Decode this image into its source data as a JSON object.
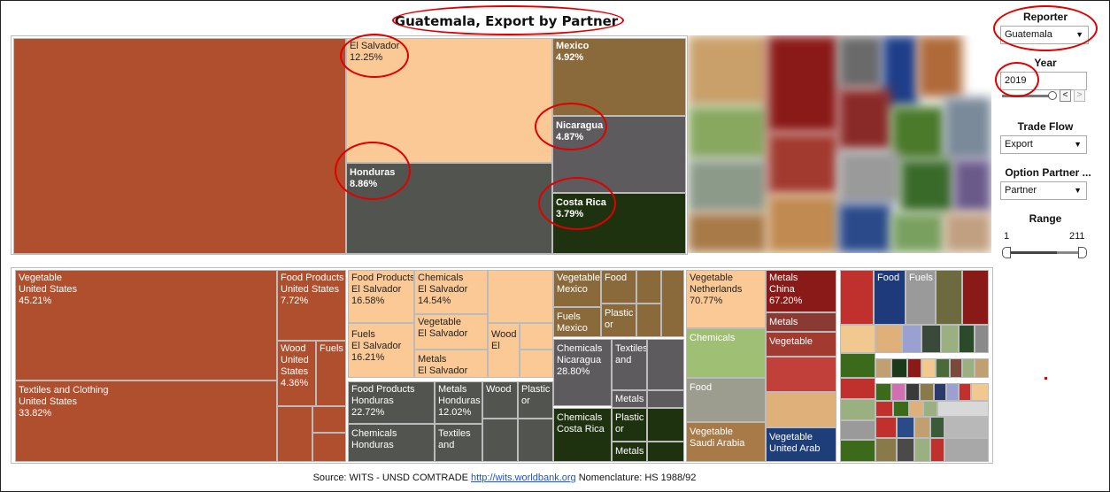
{
  "title": "Guatemala, Export by Partner",
  "top_map": {
    "cells": [
      {
        "label": "El Salvador",
        "value": "12.25%"
      },
      {
        "label": "Mexico",
        "value": "4.92%"
      },
      {
        "label": "Nicaragua",
        "value": "4.87%"
      },
      {
        "label": "Honduras",
        "value": "8.86%"
      },
      {
        "label": "Costa Rica",
        "value": "3.79%"
      }
    ]
  },
  "bottom_map": {
    "us": [
      {
        "l1": "Vegetable",
        "l2": "United States",
        "l3": "45.21%"
      },
      {
        "l1": "Food Products",
        "l2": "United States",
        "l3": "7.72%"
      },
      {
        "l1": "Wood",
        "l2": "United",
        "l3": "States",
        "l4": "4.36%"
      },
      {
        "l1": "Fuels"
      },
      {
        "l1": "Textiles and Clothing",
        "l2": "United States",
        "l3": "33.82%"
      }
    ],
    "sv": [
      {
        "l1": "Food Products",
        "l2": "El Salvador",
        "l3": "16.58%"
      },
      {
        "l1": "Chemicals",
        "l2": "El Salvador",
        "l3": "14.54%"
      },
      {
        "l1": "Vegetable",
        "l2": "El Salvador"
      },
      {
        "l1": "Wood",
        "l2": "El"
      },
      {
        "l1": "Fuels",
        "l2": "El Salvador",
        "l3": "16.21%"
      },
      {
        "l1": "Metals",
        "l2": "El Salvador"
      }
    ],
    "hn": [
      {
        "l1": "Food Products",
        "l2": "Honduras",
        "l3": "22.72%"
      },
      {
        "l1": "Metals",
        "l2": "Honduras",
        "l3": "12.02%"
      },
      {
        "l1": "Wood"
      },
      {
        "l1": "Plastic",
        "l2": "or"
      },
      {
        "l1": "Chemicals",
        "l2": "Honduras"
      },
      {
        "l1": "Textiles",
        "l2": "and"
      }
    ],
    "mx": [
      {
        "l1": "Vegetable",
        "l2": "Mexico"
      },
      {
        "l1": "Food"
      },
      {
        "l1": "Fuels",
        "l2": "Mexico"
      },
      {
        "l1": "Plastic",
        "l2": "or"
      }
    ],
    "ni": [
      {
        "l1": "Chemicals",
        "l2": "Nicaragua",
        "l3": "28.80%"
      },
      {
        "l1": "Textiles",
        "l2": "and"
      },
      {
        "l1": "Metals"
      }
    ],
    "cr": [
      {
        "l1": "Chemicals",
        "l2": "Costa Rica"
      },
      {
        "l1": "Plastic",
        "l2": "or"
      },
      {
        "l1": "Metals"
      }
    ],
    "nl": [
      {
        "l1": "Vegetable",
        "l2": "Netherlands",
        "l3": "70.77%"
      },
      {
        "l1": "Chemicals"
      },
      {
        "l1": "Food"
      },
      {
        "l1": "Vegetable",
        "l2": "Saudi Arabia"
      }
    ],
    "cn": [
      {
        "l1": "Metals",
        "l2": "China",
        "l3": "67.20%"
      },
      {
        "l1": "Metals"
      },
      {
        "l1": "Vegetable"
      },
      {
        "l1": "Vegetable",
        "l2": "United Arab"
      }
    ],
    "misc": [
      {
        "l1": "Food"
      },
      {
        "l1": "Fuels"
      }
    ]
  },
  "sidebar": {
    "reporter_label": "Reporter",
    "reporter_value": "Guatemala",
    "year_label": "Year",
    "year_value": "2019",
    "trade_flow_label": "Trade Flow",
    "trade_flow_value": "Export",
    "option_partner_label": "Option Partner ...",
    "option_partner_value": "Partner",
    "range_label": "Range",
    "range_min": "1",
    "range_max": "211"
  },
  "footer": {
    "source_prefix": "Source: WITS - UNSD COMTRADE",
    "link": "http://wits.worldbank.org",
    "nomenclature": "Nomenclature: HS 1988/92"
  },
  "colors": {
    "rust": "#b04f2e",
    "peach": "#fbc996",
    "olive_brown": "#8a6a3a",
    "slate": "#5e5b5f",
    "dark_grey": "#51544f",
    "dark_green": "#1f3210",
    "annotation_red": "#e00000"
  }
}
